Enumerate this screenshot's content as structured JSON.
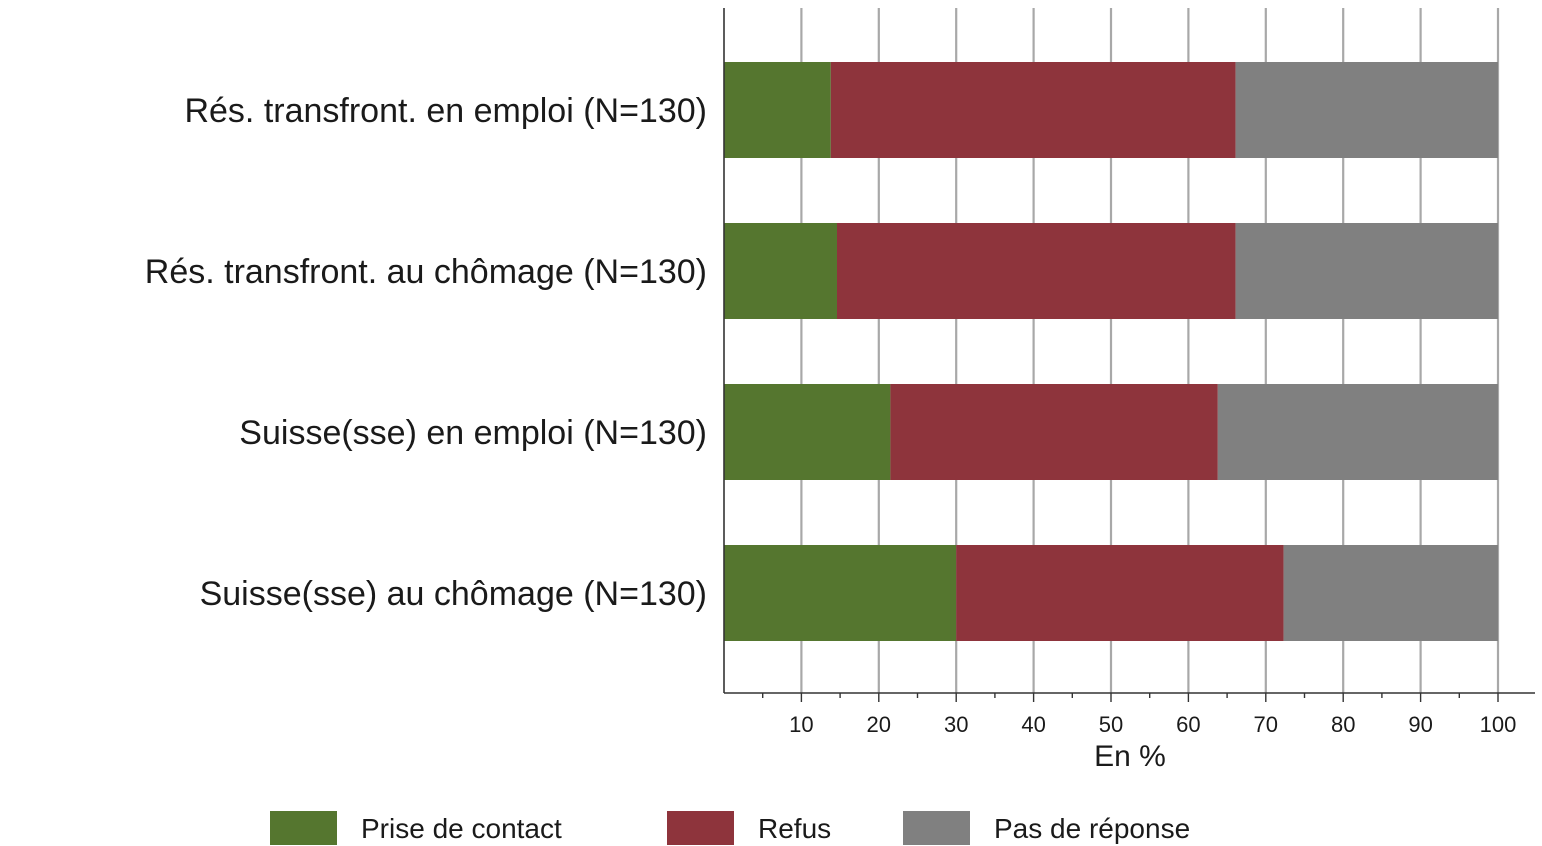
{
  "chart_data": {
    "type": "bar",
    "orientation": "horizontal",
    "stacked": true,
    "categories": [
      "Rés. transfront. en emploi (N=130)",
      "Rés. transfront. au chômage (N=130)",
      "Suisse(sse) en emploi (N=130)",
      "Suisse(sse) au chômage (N=130)"
    ],
    "series": [
      {
        "name": "Prise de contact",
        "color": "#55762f",
        "values": [
          13.8,
          14.6,
          21.5,
          30.0
        ]
      },
      {
        "name": "Refus",
        "color": "#8e343c",
        "values": [
          52.3,
          51.5,
          42.3,
          42.3
        ]
      },
      {
        "name": "Pas de réponse",
        "color": "#808080",
        "values": [
          33.9,
          33.9,
          36.2,
          27.7
        ]
      }
    ],
    "xlabel": "En %",
    "xlim": [
      0,
      104
    ],
    "xticks": [
      10,
      20,
      30,
      40,
      50,
      60,
      70,
      80,
      90,
      100
    ],
    "xtick_labels": [
      "10",
      "20",
      "30",
      "40",
      "50",
      "60",
      "70",
      "80",
      "90",
      "100"
    ],
    "grid": true,
    "legend_position": "bottom"
  }
}
